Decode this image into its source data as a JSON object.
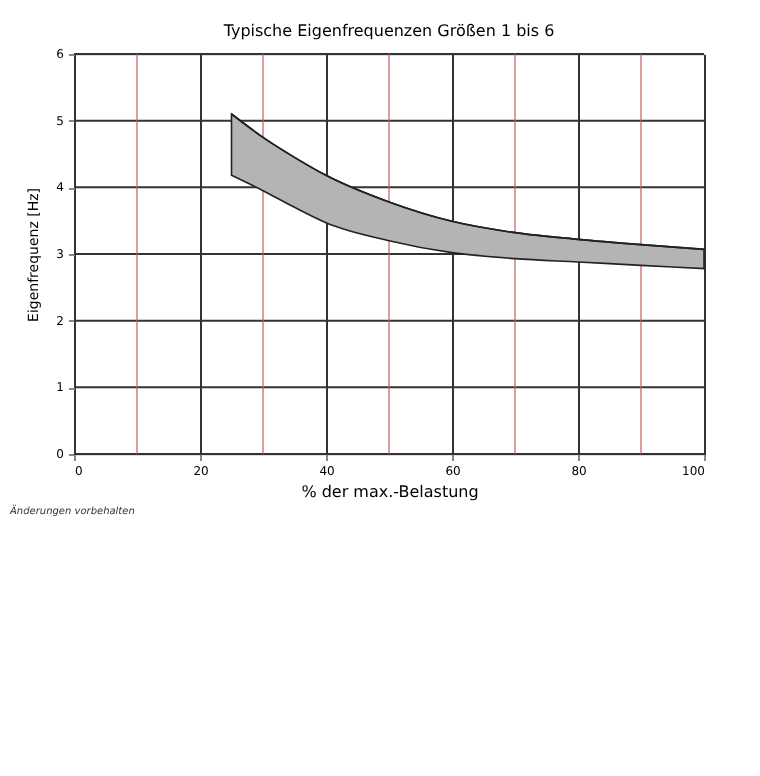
{
  "chart_data": {
    "type": "line",
    "title": "Typische Eigenfrequenzen Größen 1 bis 6",
    "xlabel": "% der max.-Belastung",
    "ylabel": "Eigenfrequenz [Hz]",
    "x": [
      25,
      30,
      35,
      40,
      50,
      60,
      70,
      80,
      90,
      100
    ],
    "series": [
      {
        "color": "#222222",
        "values": [
          5.1,
          4.75,
          4.45,
          4.18,
          3.78,
          3.49,
          3.32,
          3.22,
          3.14,
          3.07
        ],
        "upper": [
          5.1,
          4.75,
          4.45,
          4.18,
          3.78,
          3.49,
          3.32,
          3.22,
          3.14,
          3.07
        ],
        "lower": [
          4.18,
          3.95,
          3.7,
          3.47,
          3.2,
          3.02,
          2.93,
          2.88,
          2.83,
          2.78
        ]
      }
    ],
    "xlim": [
      0,
      100
    ],
    "xticks": [
      0,
      {
        "value": 10,
        "label": null
      },
      20,
      {
        "value": 30,
        "label": null
      },
      40,
      {
        "value": 50,
        "label": null
      },
      60,
      {
        "value": 70,
        "label": null
      },
      80,
      {
        "value": 90,
        "label": null
      },
      100
    ],
    "ylim": [
      0,
      6
    ],
    "yticks": [
      0,
      1,
      2,
      3,
      4,
      5,
      6
    ],
    "grid": true,
    "annotations": [
      "Änderungen vorbehalten"
    ]
  }
}
